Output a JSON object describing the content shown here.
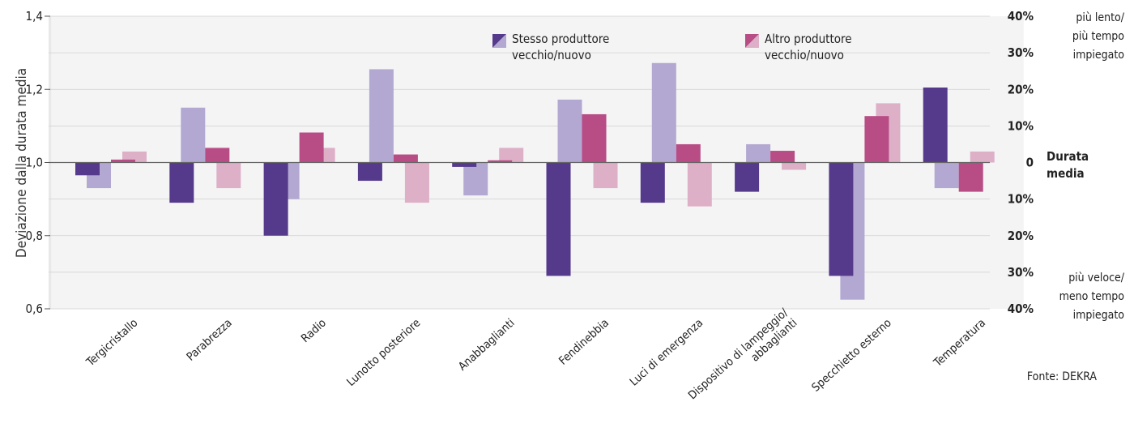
{
  "colors": {
    "same_old": "#553a8c",
    "same_new": "#b3a8d2",
    "other_old": "#b84d86",
    "other_new": "#ddb0c8",
    "band_dark": "#e8e8e8",
    "band_light": "#f4f4f4"
  },
  "chart_data": {
    "type": "bar",
    "ylabel": "Deviazione dalla durata media",
    "ylim": [
      0.6,
      1.4
    ],
    "yticks": [
      "0,6",
      "0,8",
      "1,0",
      "1,2",
      "1,4"
    ],
    "baseline": 1.0,
    "right_axis": {
      "ticks": [
        "40%",
        "30%",
        "20%",
        "10%",
        "0",
        "10%",
        "20%",
        "30%",
        "40%"
      ],
      "center_label_line1": "Durata",
      "center_label_line2": "media",
      "top_note": [
        "più lento/",
        "più tempo",
        "impiegato"
      ],
      "bottom_note": [
        "più veloce/",
        "meno tempo",
        "impiegato"
      ]
    },
    "categories": [
      [
        "Tergicristallo"
      ],
      [
        "Parabrezza"
      ],
      [
        "Radio"
      ],
      [
        "Lunotto posteriore"
      ],
      [
        "Anabbaglianti"
      ],
      [
        "Fendinebbia"
      ],
      [
        "Luci di emergenza"
      ],
      [
        "Dispositivo di lampeggio/",
        "abbaglianti"
      ],
      [
        "Specchietto esterno"
      ],
      [
        "Temperatura"
      ]
    ],
    "series": [
      {
        "name": "Stesso produttore vecchio",
        "values": [
          0.965,
          0.89,
          0.8,
          0.95,
          0.988,
          0.69,
          0.89,
          0.92,
          0.69,
          1.205
        ]
      },
      {
        "name": "Stesso produttore nuovo",
        "values": [
          0.93,
          1.15,
          0.9,
          1.255,
          0.91,
          1.172,
          1.272,
          1.05,
          0.625,
          0.93
        ]
      },
      {
        "name": "Altro produttore vecchio",
        "values": [
          1.008,
          1.04,
          1.082,
          1.022,
          1.006,
          1.132,
          1.05,
          1.032,
          1.127,
          0.92
        ]
      },
      {
        "name": "Altro produttore nuovo",
        "values": [
          1.03,
          0.93,
          1.04,
          0.89,
          1.04,
          0.93,
          0.88,
          0.98,
          1.162,
          1.03
        ]
      }
    ],
    "legend": [
      {
        "line1": "Stesso produttore",
        "line2": "vecchio/nuovo"
      },
      {
        "line1": "Altro produttore",
        "line2": "vecchio/nuovo"
      }
    ],
    "source": "Fonte: DEKRA"
  }
}
